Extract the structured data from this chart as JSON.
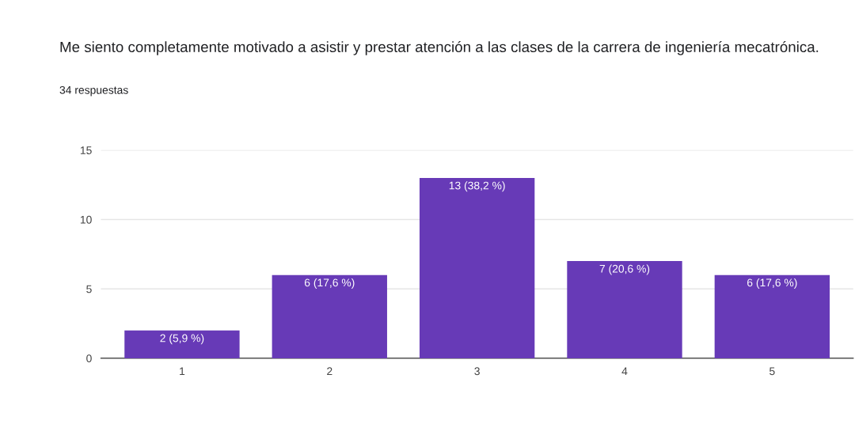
{
  "chart_data": {
    "type": "bar",
    "title": "Me siento completamente motivado a asistir y prestar atención a las clases de la carrera de ingeniería mecatrónica.",
    "subtitle": "34 respuestas",
    "categories": [
      "1",
      "2",
      "3",
      "4",
      "5"
    ],
    "values": [
      2,
      6,
      13,
      7,
      6
    ],
    "value_labels": [
      "2 (5,9 %)",
      "6 (17,6 %)",
      "13 (38,2 %)",
      "7 (20,6 %)",
      "6 (17,6 %)"
    ],
    "color": "#673ab7",
    "ylim": [
      0,
      15
    ],
    "yticks": [
      0,
      5,
      10,
      15
    ],
    "grid": "y"
  }
}
